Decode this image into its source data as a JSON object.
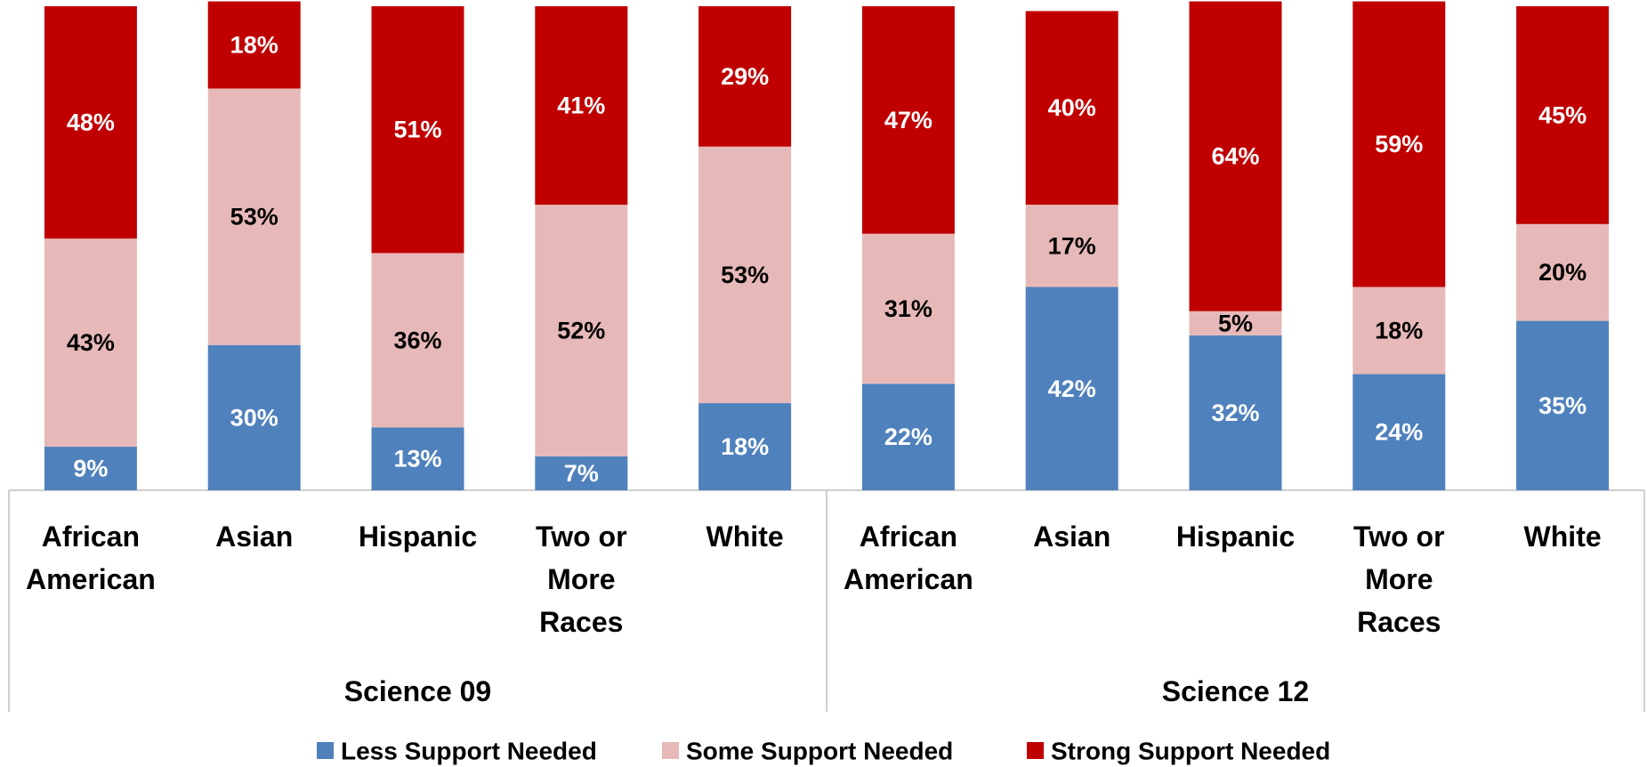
{
  "chart_data": {
    "type": "bar",
    "stacked": true,
    "percent_stacked": true,
    "groups": [
      {
        "name": "Science 09",
        "categories": [
          "African American",
          "Asian",
          "Hispanic",
          "Two or More Races",
          "White"
        ],
        "series": [
          {
            "name": "Less Support Needed",
            "values": [
              9,
              30,
              13,
              7,
              18
            ]
          },
          {
            "name": "Some Support Needed",
            "values": [
              43,
              53,
              36,
              52,
              53
            ]
          },
          {
            "name": "Strong Support Needed",
            "values": [
              48,
              18,
              51,
              41,
              29
            ]
          }
        ]
      },
      {
        "name": "Science 12",
        "categories": [
          "African American",
          "Asian",
          "Hispanic",
          "Two or More Races",
          "White"
        ],
        "series": [
          {
            "name": "Less Support Needed",
            "values": [
              22,
              42,
              32,
              24,
              35
            ]
          },
          {
            "name": "Some Support Needed",
            "values": [
              31,
              17,
              5,
              18,
              20
            ]
          },
          {
            "name": "Strong Support Needed",
            "values": [
              47,
              40,
              64,
              59,
              45
            ]
          }
        ]
      }
    ],
    "category_label_lines": {
      "African American": [
        "African",
        "American"
      ],
      "Asian": [
        "Asian"
      ],
      "Hispanic": [
        "Hispanic"
      ],
      "Two or More Races": [
        "Two or",
        "More",
        "Races"
      ],
      "White": [
        "White"
      ]
    },
    "value_suffix": "%",
    "ylim": [
      0,
      100
    ],
    "grid": false,
    "legend_position": "bottom",
    "title": "",
    "xlabel": "",
    "ylabel": ""
  },
  "colors": {
    "Less Support Needed": "#4f81bd",
    "Some Support Needed": "#e6b9b8",
    "Strong Support Needed": "#c00000",
    "label_on_dark": "#ffffff",
    "label_on_light": "#000000",
    "axis": "#bfbfbf"
  }
}
